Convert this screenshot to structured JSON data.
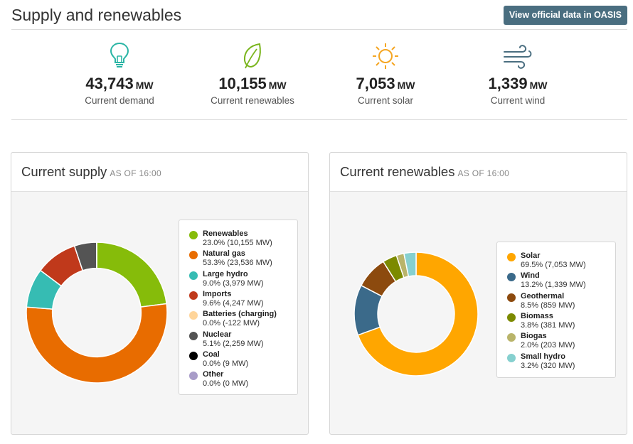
{
  "header": {
    "title": "Supply and renewables",
    "oasis_button": "View official data in OASIS"
  },
  "kpis": [
    {
      "value": "43,743",
      "unit": "MW",
      "label": "Current demand",
      "icon": "lightbulb-icon",
      "color": "#2bb5a5"
    },
    {
      "value": "10,155",
      "unit": "MW",
      "label": "Current renewables",
      "icon": "leaf-icon",
      "color": "#7ab51d"
    },
    {
      "value": "7,053",
      "unit": "MW",
      "label": "Current solar",
      "icon": "sun-icon",
      "color": "#f5a623"
    },
    {
      "value": "1,339",
      "unit": "MW",
      "label": "Current wind",
      "icon": "wind-icon",
      "color": "#4a6e80"
    }
  ],
  "chart_data": [
    {
      "type": "pie",
      "title": "Current supply",
      "as_of": "AS OF 16:00",
      "categories": [
        "Renewables",
        "Natural gas",
        "Large hydro",
        "Imports",
        "Batteries (charging)",
        "Nuclear",
        "Coal",
        "Other"
      ],
      "values": [
        10155,
        23536,
        3979,
        4247,
        -122,
        2259,
        9,
        0
      ],
      "percents": [
        "23.0%",
        "53.3%",
        "9.0%",
        "9.6%",
        "0.0%",
        "5.1%",
        "0.0%",
        "0.0%"
      ],
      "value_labels": [
        "10,155 MW",
        "23,536 MW",
        "3,979 MW",
        "4,247 MW",
        "-122 MW",
        "2,259 MW",
        "9 MW",
        "0 MW"
      ],
      "colors": [
        "#86bc0a",
        "#e86c00",
        "#36bcb3",
        "#c0391b",
        "#ffd59a",
        "#545454",
        "#000000",
        "#a89cc8"
      ],
      "legend_position": "right"
    },
    {
      "type": "pie",
      "title": "Current renewables",
      "as_of": "AS OF 16:00",
      "categories": [
        "Solar",
        "Wind",
        "Geothermal",
        "Biomass",
        "Biogas",
        "Small hydro"
      ],
      "values": [
        7053,
        1339,
        859,
        381,
        203,
        320
      ],
      "percents": [
        "69.5%",
        "13.2%",
        "8.5%",
        "3.8%",
        "2.0%",
        "3.2%"
      ],
      "value_labels": [
        "7,053 MW",
        "1,339 MW",
        "859 MW",
        "381 MW",
        "203 MW",
        "320 MW"
      ],
      "colors": [
        "#ffa600",
        "#3b6a8a",
        "#8c4a0e",
        "#7c8a00",
        "#b9b46a",
        "#86d0cf"
      ],
      "legend_position": "right"
    }
  ]
}
